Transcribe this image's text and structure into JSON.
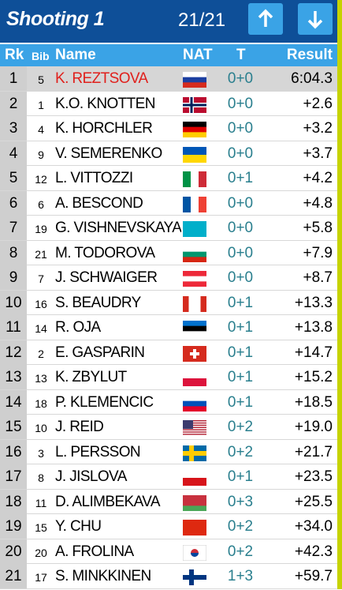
{
  "header": {
    "title": "Shooting 1",
    "counter": "21/21"
  },
  "columns": [
    "Rk",
    "Bib",
    "Name",
    "NAT",
    "T",
    "Result"
  ],
  "rows": [
    [
      1,
      5,
      "K. REZTSOVA",
      "0+0",
      "6:04.3"
    ],
    [
      2,
      1,
      "K.O. KNOTTEN",
      "0+0",
      "+2.6"
    ],
    [
      3,
      4,
      "K. HORCHLER",
      "0+0",
      "+3.2"
    ],
    [
      4,
      9,
      "V. SEMERENKO",
      "0+0",
      "+3.7"
    ],
    [
      5,
      12,
      "L. VITTOZZI",
      "0+1",
      "+4.2"
    ],
    [
      6,
      6,
      "A. BESCOND",
      "0+0",
      "+4.8"
    ],
    [
      7,
      19,
      "G. VISHNEVSKAYA",
      "0+0",
      "+5.8"
    ],
    [
      8,
      21,
      "M. TODOROVA",
      "0+0",
      "+7.9"
    ],
    [
      9,
      7,
      "J. SCHWAIGER",
      "0+0",
      "+8.7"
    ],
    [
      10,
      16,
      "S. BEAUDRY",
      "0+1",
      "+13.3"
    ],
    [
      11,
      14,
      "R. OJA",
      "0+1",
      "+13.8"
    ],
    [
      12,
      2,
      "E. GASPARIN",
      "0+1",
      "+14.7"
    ],
    [
      13,
      13,
      "K. ZBYLUT",
      "0+1",
      "+15.2"
    ],
    [
      14,
      18,
      "P. KLEMENCIC",
      "0+1",
      "+18.5"
    ],
    [
      15,
      10,
      "J. REID",
      "0+2",
      "+19.0"
    ],
    [
      16,
      3,
      "L. PERSSON",
      "0+2",
      "+21.7"
    ],
    [
      17,
      8,
      "J. JISLOVA",
      "0+1",
      "+23.5"
    ],
    [
      18,
      11,
      "D. ALIMBEKAVA",
      "0+3",
      "+25.5"
    ],
    [
      19,
      15,
      "Y. CHU",
      "0+2",
      "+34.0"
    ],
    [
      20,
      20,
      "A. FROLINA",
      "0+2",
      "+42.3"
    ],
    [
      21,
      17,
      "S. MINKKINEN",
      "1+3",
      "+59.7"
    ]
  ]
}
